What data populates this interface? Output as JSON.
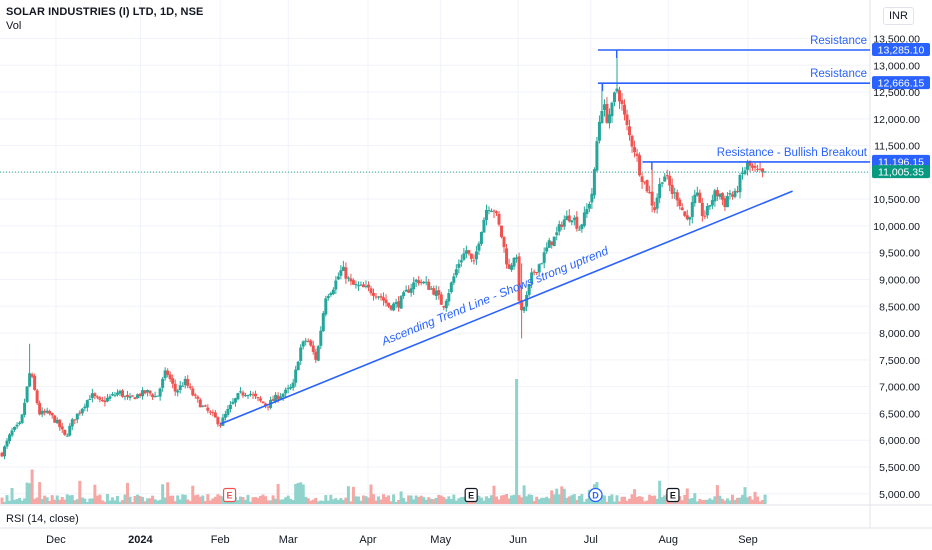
{
  "header": {
    "title": "SOLAR INDUSTRIES (I) LTD, 1D, NSE",
    "volume_label": "Vol",
    "currency": "INR",
    "rsi_label": "RSI (14, close)"
  },
  "chart_data": {
    "type": "candlestick",
    "y_ticks": [
      "13,500.00",
      "13,000.00",
      "12,500.00",
      "12,000.00",
      "11,500.00",
      "11,000.00",
      "10,500.00",
      "10,000.00",
      "9,500.00",
      "9,000.00",
      "8,500.00",
      "8,000.00",
      "7,500.00",
      "7,000.00",
      "6,500.00",
      "6,000.00",
      "5,500.00",
      "5,000.00"
    ],
    "y_tick_values": [
      13500,
      13000,
      12500,
      12000,
      11500,
      11000,
      10500,
      10000,
      9500,
      9000,
      8500,
      8000,
      7500,
      7000,
      6500,
      6000,
      5500,
      5000
    ],
    "ylim": [
      4900,
      13700
    ],
    "x_ticks": [
      {
        "label": "Dec",
        "day": 23,
        "bold": false
      },
      {
        "label": "2024",
        "day": 59,
        "bold": true
      },
      {
        "label": "Feb",
        "day": 93,
        "bold": false
      },
      {
        "label": "Mar",
        "day": 122,
        "bold": false
      },
      {
        "label": "Apr",
        "day": 156,
        "bold": false
      },
      {
        "label": "May",
        "day": 187,
        "bold": false
      },
      {
        "label": "Jun",
        "day": 220,
        "bold": false
      },
      {
        "label": "Jul",
        "day": 251,
        "bold": false
      },
      {
        "label": "Aug",
        "day": 284,
        "bold": false
      },
      {
        "label": "Sep",
        "day": 318,
        "bold": false
      }
    ],
    "x_range_days": [
      0,
      370
    ],
    "anchors": [
      [
        0,
        5750
      ],
      [
        4,
        6150
      ],
      [
        8,
        6300
      ],
      [
        12,
        7300
      ],
      [
        16,
        6500
      ],
      [
        20,
        6500
      ],
      [
        24,
        6300
      ],
      [
        27,
        6050
      ],
      [
        30,
        6350
      ],
      [
        34,
        6600
      ],
      [
        38,
        6850
      ],
      [
        42,
        6700
      ],
      [
        46,
        6800
      ],
      [
        50,
        6900
      ],
      [
        54,
        6750
      ],
      [
        58,
        6850
      ],
      [
        62,
        6900
      ],
      [
        66,
        6800
      ],
      [
        70,
        7300
      ],
      [
        74,
        6900
      ],
      [
        78,
        7100
      ],
      [
        82,
        6800
      ],
      [
        86,
        6600
      ],
      [
        90,
        6450
      ],
      [
        93,
        6300
      ],
      [
        97,
        6600
      ],
      [
        101,
        6850
      ],
      [
        105,
        6900
      ],
      [
        109,
        6750
      ],
      [
        113,
        6650
      ],
      [
        117,
        6800
      ],
      [
        121,
        6900
      ],
      [
        124,
        7000
      ],
      [
        127,
        7700
      ],
      [
        130,
        7900
      ],
      [
        134,
        7500
      ],
      [
        138,
        8700
      ],
      [
        141,
        8850
      ],
      [
        145,
        9200
      ],
      [
        149,
        8900
      ],
      [
        153,
        8850
      ],
      [
        157,
        8800
      ],
      [
        161,
        8700
      ],
      [
        165,
        8500
      ],
      [
        169,
        8550
      ],
      [
        173,
        8800
      ],
      [
        177,
        9000
      ],
      [
        181,
        8900
      ],
      [
        185,
        8750
      ],
      [
        188,
        8500
      ],
      [
        191,
        8850
      ],
      [
        195,
        9350
      ],
      [
        198,
        9550
      ],
      [
        201,
        9250
      ],
      [
        204,
        9900
      ],
      [
        207,
        10400
      ],
      [
        210,
        10300
      ],
      [
        213,
        9800
      ],
      [
        216,
        9150
      ],
      [
        219,
        9550
      ],
      [
        221,
        8300
      ],
      [
        223,
        8550
      ],
      [
        226,
        9100
      ],
      [
        230,
        9350
      ],
      [
        233,
        9650
      ],
      [
        236,
        9800
      ],
      [
        239,
        10100
      ],
      [
        243,
        10200
      ],
      [
        246,
        9950
      ],
      [
        249,
        10250
      ],
      [
        252,
        10700
      ],
      [
        254,
        11800
      ],
      [
        256,
        12300
      ],
      [
        258,
        12000
      ],
      [
        260,
        12200
      ],
      [
        262,
        12600
      ],
      [
        264,
        12300
      ],
      [
        266,
        11900
      ],
      [
        268,
        11600
      ],
      [
        270,
        11400
      ],
      [
        272,
        11000
      ],
      [
        274,
        10800
      ],
      [
        276,
        10600
      ],
      [
        278,
        10300
      ],
      [
        280,
        10700
      ],
      [
        282,
        11000
      ],
      [
        284,
        10800
      ],
      [
        286,
        10600
      ],
      [
        288,
        10550
      ],
      [
        290,
        10300
      ],
      [
        292,
        10100
      ],
      [
        294,
        10350
      ],
      [
        296,
        10600
      ],
      [
        298,
        10250
      ],
      [
        300,
        10200
      ],
      [
        302,
        10450
      ],
      [
        304,
        10600
      ],
      [
        306,
        10600
      ],
      [
        308,
        10400
      ],
      [
        310,
        10650
      ],
      [
        312,
        10500
      ],
      [
        314,
        10800
      ],
      [
        316,
        11000
      ],
      [
        318,
        11150
      ],
      [
        320,
        11050
      ],
      [
        322,
        11000
      ],
      [
        324,
        10950
      ],
      [
        326,
        10950
      ]
    ],
    "resistance_lines": [
      {
        "label": "Resistance",
        "price": 13285.1,
        "price_label": "13,285.10",
        "from_day": 254,
        "peak_day": 262
      },
      {
        "label": "Resistance",
        "price": 12666.15,
        "price_label": "12,666.15",
        "from_day": 254,
        "peak_day": 256
      },
      {
        "label": "Resistance - Bullish Breakout",
        "price": 11196.15,
        "price_label": "11,196.15",
        "from_day": 273,
        "peak_day": 277
      }
    ],
    "last_price": {
      "value": 11005.35,
      "label": "11,005.35"
    },
    "trend_line": {
      "label": "Ascending Trend Line - Shows strong uptrend",
      "from": [
        93,
        6300
      ],
      "to": [
        337,
        10650
      ]
    },
    "volume_spike": {
      "day": 219,
      "height": 0.85
    },
    "event_markers": [
      {
        "letter": "E",
        "day": 97,
        "style": "earnings-red"
      },
      {
        "letter": "E",
        "day": 200,
        "style": "earnings-dark"
      },
      {
        "letter": "D",
        "day": 253,
        "style": "dividend-blue"
      },
      {
        "letter": "E",
        "day": 286,
        "style": "earnings-dark"
      }
    ],
    "colors": {
      "up": "#26a69a",
      "down": "#ef5350",
      "vol_up": "#8fd3cc",
      "vol_down": "#f6a7a4",
      "annotation": "#2962ff",
      "grid": "#f0f3fa",
      "axis_text": "#131722"
    }
  }
}
